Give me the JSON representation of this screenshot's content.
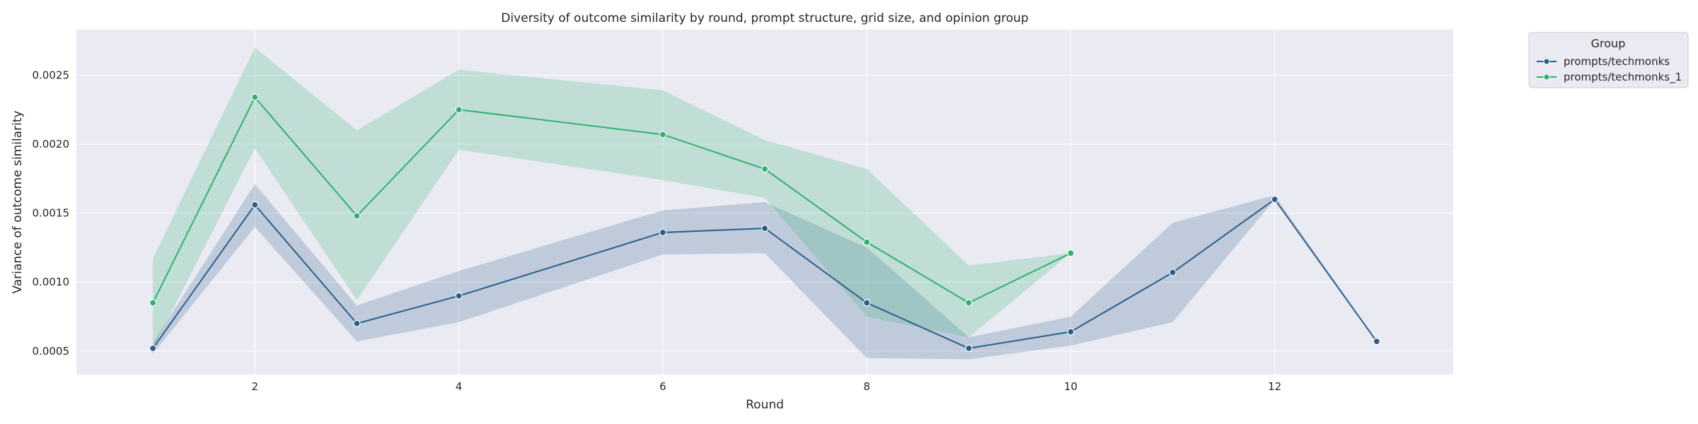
{
  "chart_data": {
    "type": "line",
    "title": "Diversity of outcome similarity by round, prompt structure, grid size, and opinion group",
    "xlabel": "Round",
    "ylabel": "Variance of outcome similarity",
    "xlim": [
      0.25,
      13.75
    ],
    "ylim": [
      0.00033,
      0.00283
    ],
    "x_ticks": [
      2,
      4,
      6,
      8,
      10,
      12
    ],
    "y_ticks": [
      0.0005,
      0.001,
      0.0015,
      0.002,
      0.0025
    ],
    "y_tick_labels": [
      "0.0005",
      "0.0010",
      "0.0015",
      "0.0020",
      "0.0025"
    ],
    "grid": true,
    "legend": {
      "title": "Group",
      "placement": "outside-top-right"
    },
    "series": [
      {
        "name": "prompts/techmonks",
        "color": "#2a5f8a",
        "x": [
          1,
          2,
          3,
          4,
          6,
          7,
          8,
          9,
          10,
          11,
          12,
          13
        ],
        "y": [
          0.00052,
          0.00156,
          0.0007,
          0.0009,
          0.00136,
          0.00139,
          0.00085,
          0.00052,
          0.00064,
          0.00107,
          0.0016,
          0.00057
        ],
        "ci_low": [
          0.00048,
          0.0014,
          0.00057,
          0.00071,
          0.0012,
          0.00121,
          0.00045,
          0.00044,
          0.00054,
          0.00071,
          0.0016,
          0.00057
        ],
        "ci_high": [
          0.00056,
          0.00171,
          0.00083,
          0.00108,
          0.00152,
          0.00158,
          0.00125,
          0.0006,
          0.00075,
          0.00143,
          0.00163,
          0.00057
        ]
      },
      {
        "name": "prompts/techmonks_1",
        "color": "#2fb171",
        "x": [
          1,
          2,
          3,
          4,
          6,
          7,
          8,
          9,
          10
        ],
        "y": [
          0.00085,
          0.00234,
          0.00148,
          0.00225,
          0.00207,
          0.00182,
          0.00129,
          0.00085,
          0.00121
        ],
        "ci_low": [
          0.00052,
          0.00197,
          0.00087,
          0.00196,
          0.00174,
          0.00161,
          0.00075,
          0.0006,
          0.00121
        ],
        "ci_high": [
          0.00117,
          0.0027,
          0.0021,
          0.00254,
          0.00239,
          0.00203,
          0.00182,
          0.00112,
          0.00121
        ]
      }
    ]
  }
}
